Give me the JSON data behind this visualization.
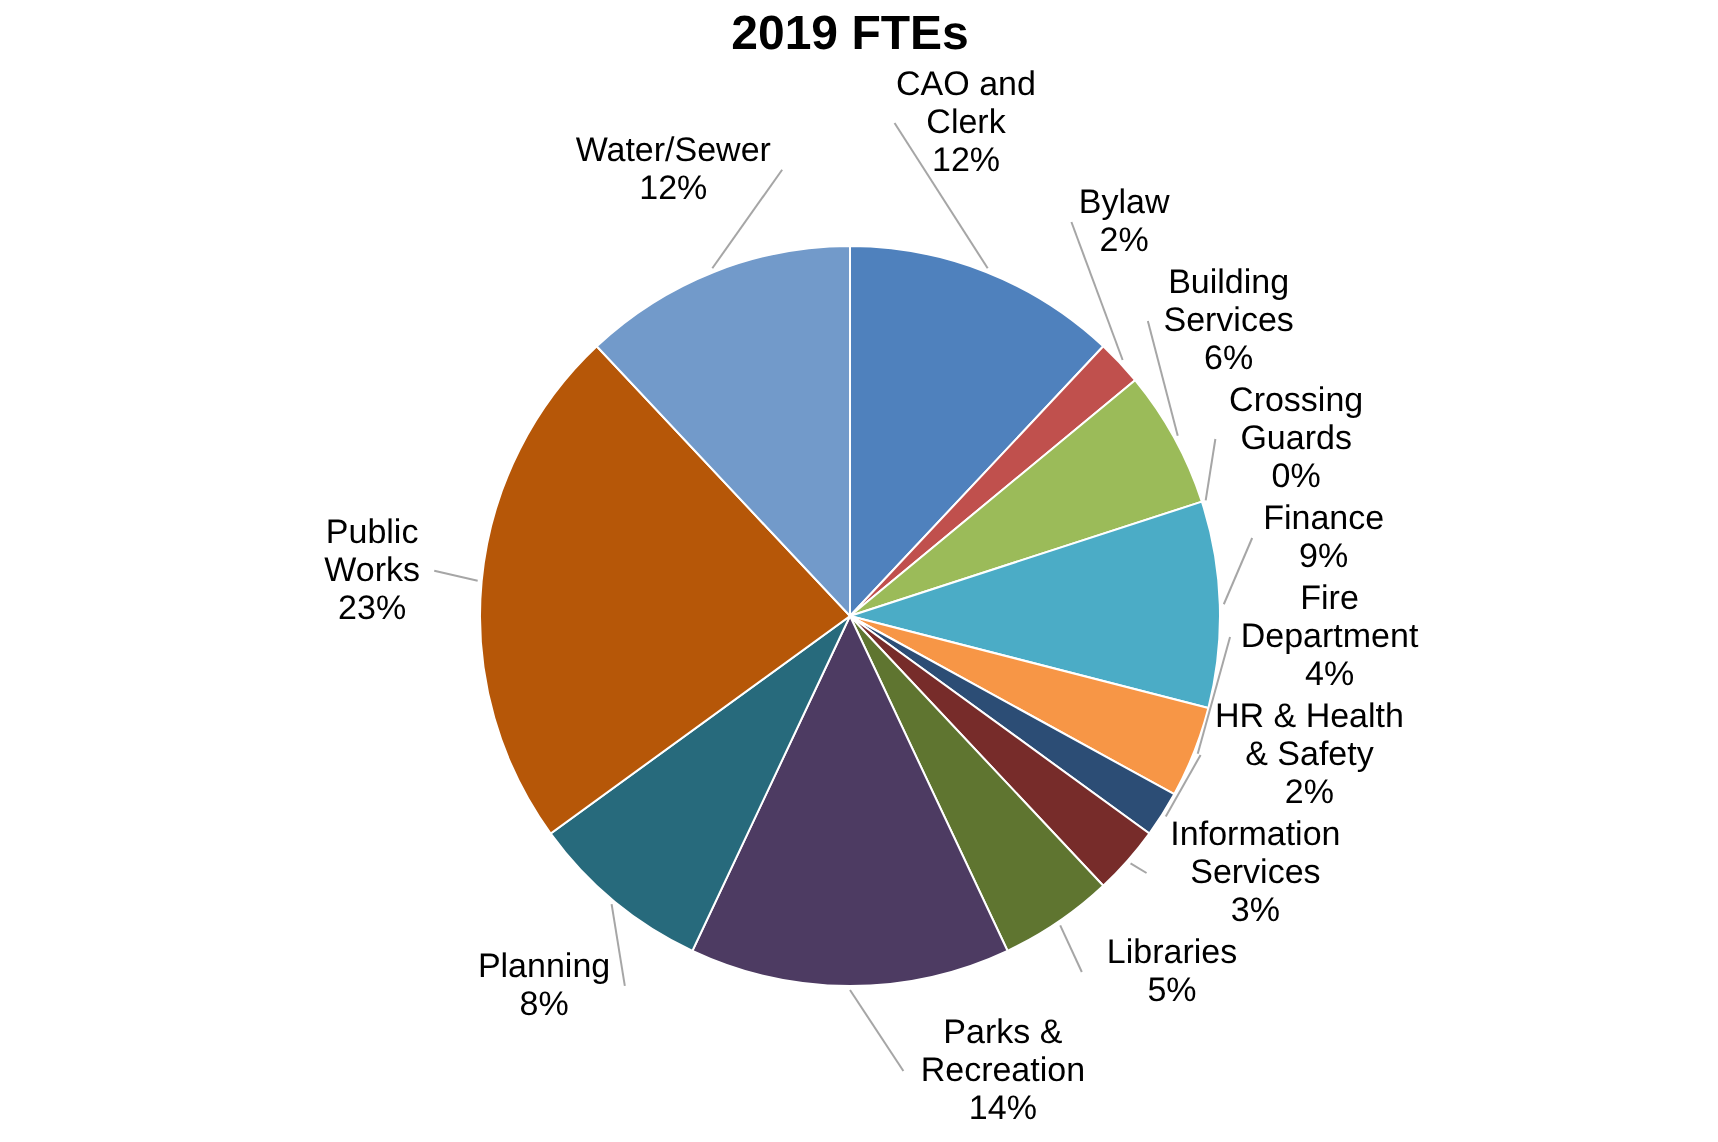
{
  "chart_data": {
    "type": "pie",
    "title": "2019 FTEs",
    "categories": [
      "CAO and Clerk",
      "Bylaw",
      "Building Services",
      "Crossing Guards",
      "Finance",
      "Fire Department",
      "HR & Health & Safety",
      "Information Services",
      "Libraries",
      "Parks & Recreation",
      "Planning",
      "Public Works",
      "Water/Sewer"
    ],
    "values": [
      12,
      2,
      6,
      0,
      9,
      4,
      2,
      3,
      5,
      14,
      8,
      23,
      12
    ],
    "value_labels": [
      "12%",
      "2%",
      "6%",
      "0%",
      "9%",
      "4%",
      "2%",
      "3%",
      "5%",
      "14%",
      "8%",
      "23%",
      "12%"
    ],
    "colors": [
      "#4f81bd",
      "#c0504d",
      "#9bbb59",
      "#8064a2",
      "#4bacc6",
      "#f79646",
      "#2c4d75",
      "#772c2a",
      "#5f7530",
      "#4d3b62",
      "#276a7c",
      "#b65708",
      "#729aca"
    ],
    "legend": false
  }
}
